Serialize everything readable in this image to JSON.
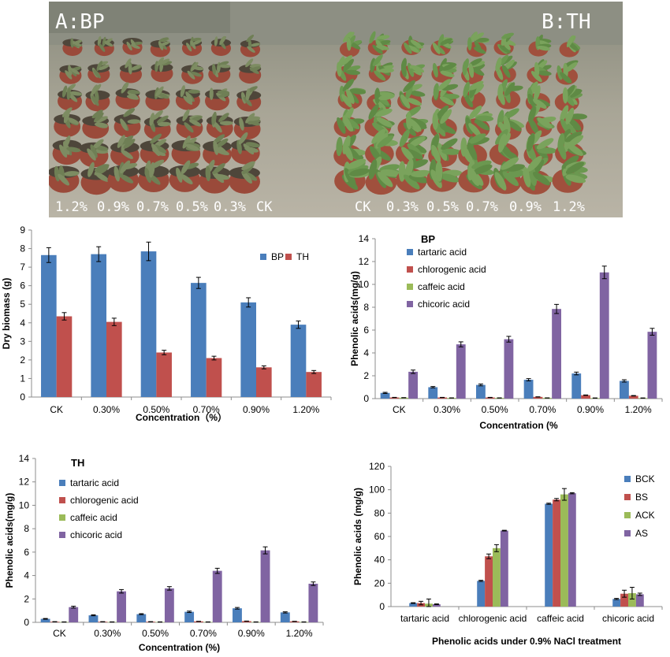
{
  "photo": {
    "panel_a_label": "A:BP",
    "panel_b_label": "B:TH",
    "labels_a": [
      "1.2%",
      "0.9%",
      "0.7%",
      "0.5%",
      "0.3%",
      "CK"
    ],
    "labels_b": [
      "CK",
      "0.3%",
      "0.5%",
      "0.7%",
      "0.9%",
      "1.2%"
    ]
  },
  "chart_data": [
    {
      "type": "bar",
      "categories": [
        "CK",
        "0.30%",
        "0.50%",
        "0.70%",
        "0.90%",
        "1.20%"
      ],
      "series": [
        {
          "name": "BP",
          "color": "#4a7ebb",
          "values": [
            7.65,
            7.7,
            7.85,
            6.15,
            5.1,
            3.9
          ],
          "errors": [
            0.4,
            0.4,
            0.5,
            0.3,
            0.25,
            0.2
          ]
        },
        {
          "name": "TH",
          "color": "#c0504d",
          "values": [
            4.35,
            4.05,
            2.4,
            2.1,
            1.6,
            1.35
          ],
          "errors": [
            0.2,
            0.2,
            0.12,
            0.1,
            0.08,
            0.08
          ]
        }
      ],
      "title": "",
      "xlabel": "Concentration（%）",
      "ylabel": "Dry biomass (g)",
      "ylim": [
        0,
        9
      ],
      "yticks": [
        0,
        1,
        2,
        3,
        4,
        5,
        6,
        7,
        8,
        9
      ],
      "legend": "top-right, horizontal"
    },
    {
      "type": "bar",
      "categories": [
        "CK",
        "0.30%",
        "0.50%",
        "0.70%",
        "0.90%",
        "1.20%"
      ],
      "series": [
        {
          "name": "tartaric acid",
          "color": "#4a7ebb",
          "values": [
            0.5,
            1.0,
            1.2,
            1.65,
            2.2,
            1.55
          ],
          "errors": [
            0.05,
            0.06,
            0.08,
            0.1,
            0.12,
            0.1
          ]
        },
        {
          "name": "chlorogenic acid",
          "color": "#c0504d",
          "values": [
            0.1,
            0.1,
            0.1,
            0.15,
            0.3,
            0.25
          ],
          "errors": [
            0.01,
            0.01,
            0.01,
            0.01,
            0.02,
            0.02
          ]
        },
        {
          "name": "caffeic acid",
          "color": "#9bbb59",
          "values": [
            0.08,
            0.06,
            0.06,
            0.06,
            0.05,
            0.05
          ],
          "errors": [
            0.01,
            0.01,
            0.01,
            0.01,
            0.01,
            0.01
          ]
        },
        {
          "name": "chicoric acid",
          "color": "#8064a2",
          "values": [
            2.35,
            4.75,
            5.2,
            7.85,
            11.05,
            5.85
          ],
          "errors": [
            0.15,
            0.22,
            0.25,
            0.4,
            0.55,
            0.3
          ]
        }
      ],
      "title": "BP",
      "xlabel": "Concentration (%",
      "ylabel": "Phenolic acids(mg/g)",
      "ylim": [
        0,
        14
      ],
      "yticks": [
        0,
        2,
        4,
        6,
        8,
        10,
        12,
        14
      ],
      "legend": "top-left, vertical"
    },
    {
      "type": "bar",
      "categories": [
        "CK",
        "0.30%",
        "0.50%",
        "0.70%",
        "0.90%",
        "1.20%"
      ],
      "series": [
        {
          "name": "tartaric acid",
          "color": "#4a7ebb",
          "values": [
            0.3,
            0.6,
            0.7,
            0.9,
            1.2,
            0.85
          ],
          "errors": [
            0.03,
            0.04,
            0.04,
            0.06,
            0.07,
            0.05
          ]
        },
        {
          "name": "chlorogenic acid",
          "color": "#c0504d",
          "values": [
            0.05,
            0.05,
            0.05,
            0.08,
            0.1,
            0.08
          ],
          "errors": [
            0.01,
            0.01,
            0.01,
            0.01,
            0.01,
            0.01
          ]
        },
        {
          "name": "caffeic acid",
          "color": "#9bbb59",
          "values": [
            0.03,
            0.03,
            0.03,
            0.03,
            0.03,
            0.03
          ],
          "errors": [
            0.01,
            0.01,
            0.01,
            0.01,
            0.01,
            0.01
          ]
        },
        {
          "name": "chicoric acid",
          "color": "#8064a2",
          "values": [
            1.3,
            2.65,
            2.9,
            4.4,
            6.15,
            3.3
          ],
          "errors": [
            0.08,
            0.15,
            0.15,
            0.22,
            0.3,
            0.15
          ]
        }
      ],
      "title": "TH",
      "xlabel": "Concentration (%)",
      "ylabel": "Phenolic acids(mg/g)",
      "ylim": [
        0,
        14
      ],
      "yticks": [
        0,
        2,
        4,
        6,
        8,
        10,
        12,
        14
      ],
      "legend": "top-left, vertical"
    },
    {
      "type": "bar",
      "categories": [
        "tartaric acid",
        "chlorogenic acid",
        "caffeic acid",
        "chicoric acid"
      ],
      "series": [
        {
          "name": "BCK",
          "color": "#4a7ebb",
          "values": [
            3,
            22,
            88,
            6.5
          ],
          "errors": [
            0.3,
            0.5,
            0.5,
            0.5
          ]
        },
        {
          "name": "BS",
          "color": "#c0504d",
          "values": [
            3,
            43,
            91.5,
            11
          ],
          "errors": [
            1.5,
            2,
            1,
            3
          ]
        },
        {
          "name": "ACK",
          "color": "#9bbb59",
          "values": [
            2.5,
            50,
            96,
            11.5
          ],
          "errors": [
            4,
            3,
            5,
            5
          ]
        },
        {
          "name": "AS",
          "color": "#8064a2",
          "values": [
            2,
            65,
            97,
            10.5
          ],
          "errors": [
            0.3,
            0.3,
            0.5,
            1
          ]
        }
      ],
      "title": "",
      "xlabel": "Phenolic acids under 0.9% NaCl treatment",
      "ylabel": "Phenolic acids (mg/g)",
      "ylim": [
        0,
        120
      ],
      "yticks": [
        0,
        20,
        40,
        60,
        80,
        100,
        120
      ],
      "legend": "right, vertical"
    }
  ]
}
